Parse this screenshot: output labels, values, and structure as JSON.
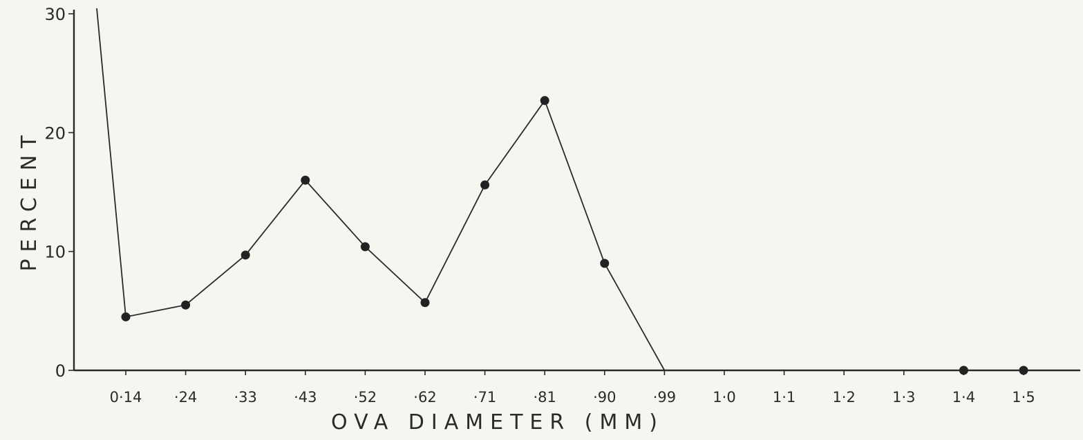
{
  "chart_data": {
    "type": "line",
    "title": "",
    "xlabel": "OVA DIAMETER (MM)",
    "ylabel": "PERCENT",
    "ylim": [
      0,
      30
    ],
    "grid": false,
    "legend": "none",
    "y_ticks": [
      0,
      10,
      20,
      30
    ],
    "y_tick_labels": [
      "0",
      "10",
      "20",
      "30"
    ],
    "categories": [
      "0·14",
      "·24",
      "·33",
      "·43",
      "·52",
      "·62",
      "·71",
      "·81",
      "·90",
      "·99",
      "1·0",
      "1·1",
      "1·2",
      "1·3",
      "1·4",
      "1·5"
    ],
    "series": [
      {
        "values": [
          4.5,
          5.5,
          9.7,
          16.0,
          10.4,
          5.7,
          15.6,
          22.7,
          9.0,
          0.0,
          null,
          null,
          null,
          null,
          0.0,
          0.0
        ],
        "markers": [
          true,
          true,
          true,
          true,
          true,
          true,
          true,
          true,
          true,
          false,
          false,
          false,
          false,
          false,
          true,
          true
        ],
        "line_start_value": 30
      }
    ],
    "colors": {
      "ink": "#2a2a2a",
      "paper": "#f7f5f0"
    }
  }
}
